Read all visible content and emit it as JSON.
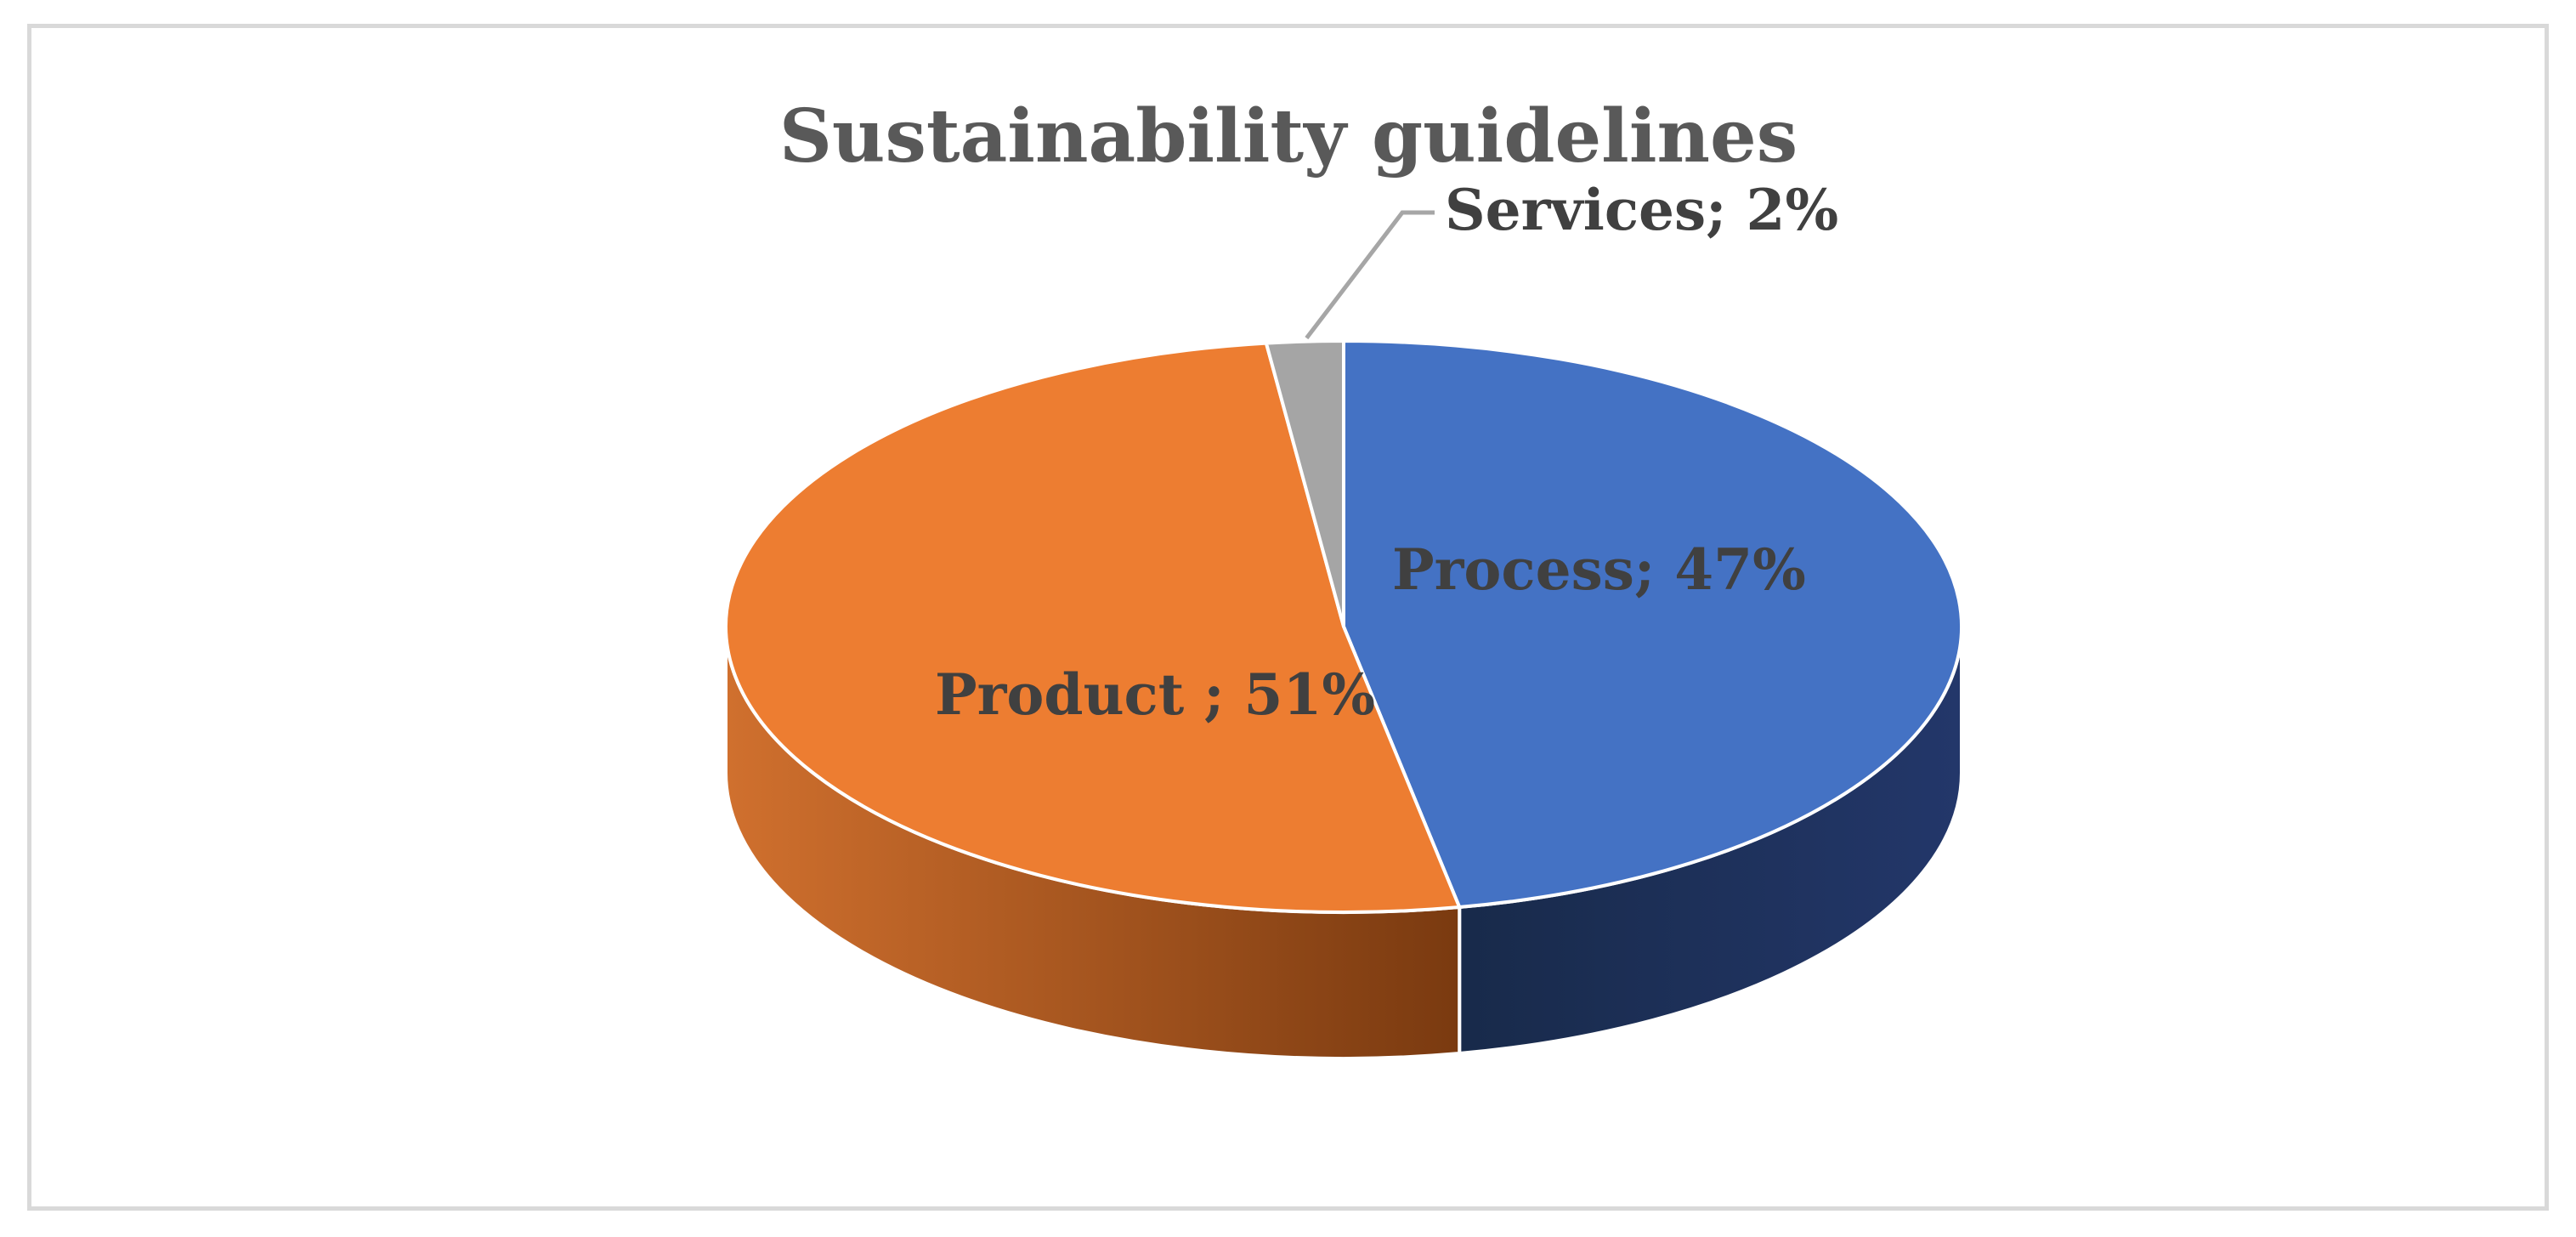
{
  "chart_data": {
    "type": "pie",
    "title": "Sustainability guidelines",
    "three_d": true,
    "legend": "none",
    "slices": [
      {
        "name": "Process",
        "value": 47,
        "label": "Process; 47%",
        "color": "#4472C4",
        "side_color_dark": "#182A4A",
        "side_color_light": "#23376A"
      },
      {
        "name": "Product",
        "value": 51,
        "label": "Product ; 51%",
        "color": "#ED7D31",
        "side_color_dark": "#7A3A10",
        "side_color_light": "#D0702E"
      },
      {
        "name": "Services",
        "value": 2,
        "label": "Services; 2%",
        "color": "#A5A5A5",
        "side_color_dark": "#6E6E6E",
        "side_color_light": "#8C8C8C"
      }
    ],
    "frame_border_color": "#D9D9D9",
    "label_color": "#404040",
    "title_color": "#595959"
  }
}
